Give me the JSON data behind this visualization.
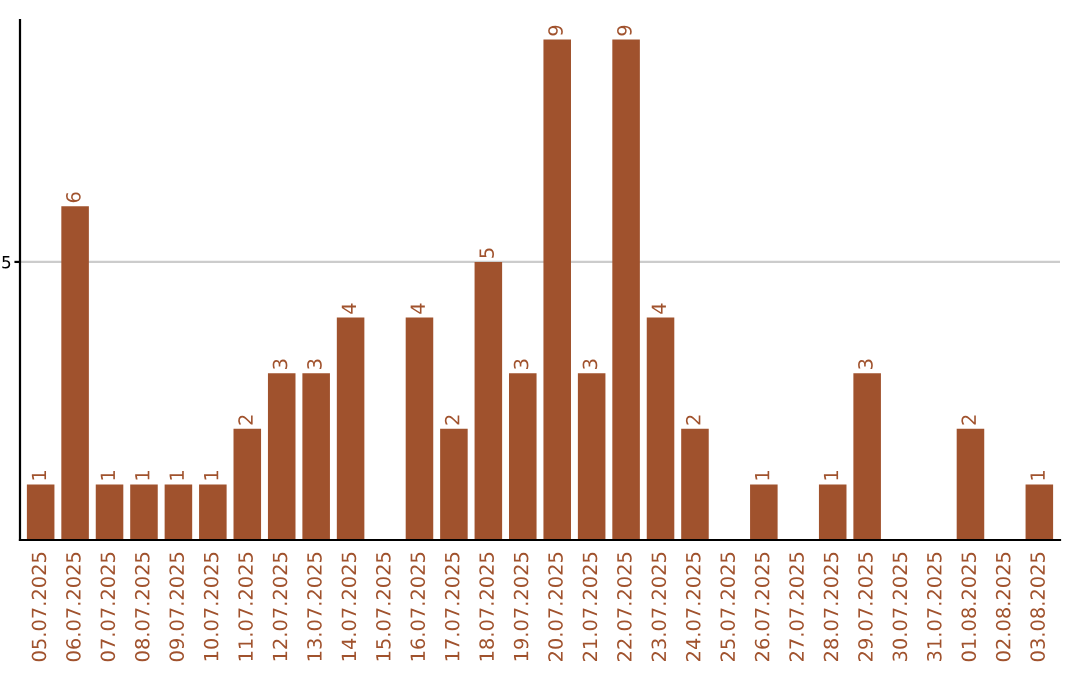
{
  "chart_data": {
    "type": "bar",
    "categories": [
      "05.07.2025",
      "06.07.2025",
      "07.07.2025",
      "08.07.2025",
      "09.07.2025",
      "10.07.2025",
      "11.07.2025",
      "12.07.2025",
      "13.07.2025",
      "14.07.2025",
      "15.07.2025",
      "16.07.2025",
      "17.07.2025",
      "18.07.2025",
      "19.07.2025",
      "20.07.2025",
      "21.07.2025",
      "22.07.2025",
      "23.07.2025",
      "24.07.2025",
      "25.07.2025",
      "26.07.2025",
      "27.07.2025",
      "28.07.2025",
      "29.07.2025",
      "30.07.2025",
      "31.07.2025",
      "01.08.2025",
      "02.08.2025",
      "03.08.2025"
    ],
    "values": [
      1,
      6,
      1,
      1,
      1,
      1,
      2,
      3,
      3,
      4,
      null,
      4,
      2,
      5,
      3,
      9,
      3,
      9,
      4,
      2,
      null,
      1,
      null,
      1,
      3,
      null,
      null,
      2,
      null,
      1
    ],
    "color": "#a0522d",
    "ylim": [
      0,
      9.35
    ],
    "yticks": [
      5
    ],
    "grid": "y",
    "data_labels": true
  }
}
